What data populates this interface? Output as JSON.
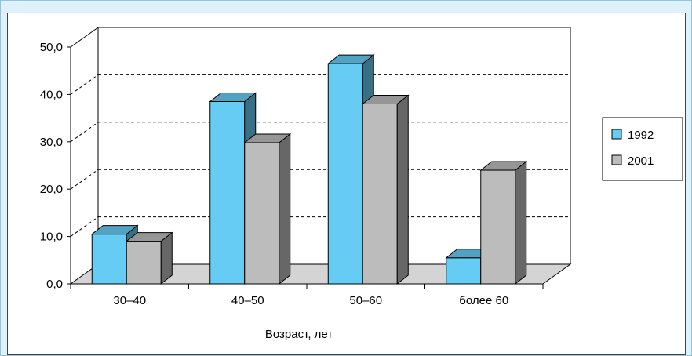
{
  "chart_data": {
    "type": "bar",
    "title": "",
    "xlabel": "Возраст, лет",
    "ylabel": "",
    "categories": [
      "30–40",
      "40–50",
      "50–60",
      "более 60"
    ],
    "series": [
      {
        "name": "1992",
        "values": [
          10.5,
          38.5,
          46.5,
          5.5
        ],
        "color": "#66ccf3"
      },
      {
        "name": "2001",
        "values": [
          9.0,
          29.8,
          38.0,
          24.0
        ],
        "color": "#bcbcbc"
      }
    ],
    "ylim": [
      0,
      50
    ],
    "yticks": [
      "0,0",
      "10,0",
      "20,0",
      "30,0",
      "40,0",
      "50,0"
    ],
    "grid": "dashed horizontal",
    "legend": "right",
    "floor_color": "#d4d4d4"
  }
}
